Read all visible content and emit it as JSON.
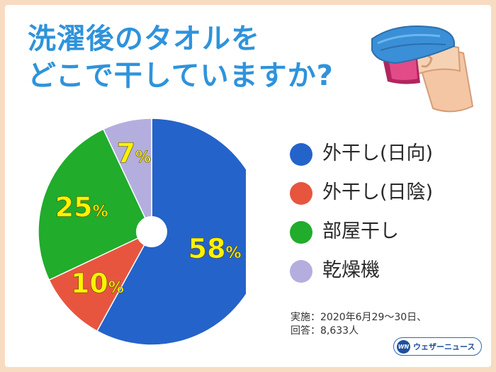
{
  "title_lines": [
    "洗濯後のタオルを",
    "どこで干していますか?"
  ],
  "chart_data": {
    "type": "pie",
    "labels": [
      "外干し(日向)",
      "外干し(日陰)",
      "部屋干し",
      "乾燥機"
    ],
    "values": [
      58,
      10,
      25,
      7
    ],
    "value_labels": [
      "58",
      "10",
      "25",
      "7"
    ],
    "percent_sign": "%",
    "colors": [
      "#2463c9",
      "#e8553e",
      "#21ac2c",
      "#b4aedf"
    ],
    "donut_hole": true,
    "legend_position": "right"
  },
  "legend": [
    {
      "label": "外干し(日向)",
      "color": "#2463c9"
    },
    {
      "label": "外干し(日陰)",
      "color": "#e8553e"
    },
    {
      "label": "部屋干し",
      "color": "#21ac2c"
    },
    {
      "label": "乾燥機",
      "color": "#b4aedf"
    }
  ],
  "note_lines": [
    "実施：2020年6月29～30日、",
    "回答：8,633人"
  ],
  "logo": {
    "mark": "WN",
    "text": "ウェザーニュース"
  },
  "icons": [
    "towel-illustration"
  ]
}
